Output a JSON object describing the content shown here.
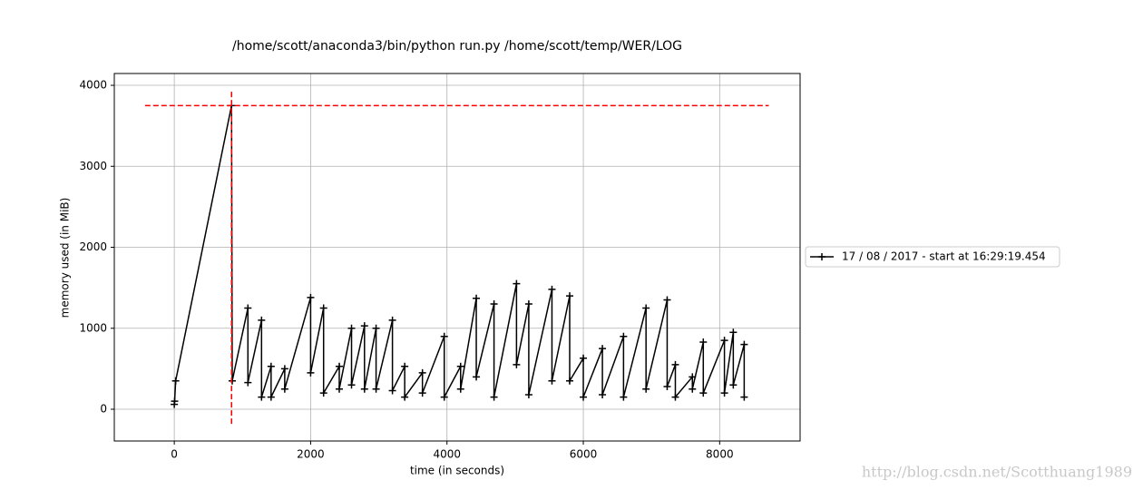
{
  "chart_data": {
    "type": "line",
    "title": "/home/scott/anaconda3/bin/python run.py /home/scott/temp/WER/LOG",
    "x_label": "time (in seconds)",
    "y_label": "memory used (in MiB)",
    "x": [
      0,
      5,
      20,
      840,
      850,
      1080,
      1080,
      1280,
      1280,
      1420,
      1420,
      1620,
      1620,
      2000,
      2000,
      2190,
      2190,
      2420,
      2420,
      2600,
      2600,
      2790,
      2790,
      2960,
      2960,
      3200,
      3200,
      3380,
      3380,
      3640,
      3640,
      3960,
      3960,
      4200,
      4200,
      4430,
      4430,
      4690,
      4690,
      5020,
      5020,
      5200,
      5200,
      5540,
      5540,
      5800,
      5800,
      6000,
      6000,
      6280,
      6280,
      6590,
      6590,
      6920,
      6920,
      7230,
      7230,
      7350,
      7350,
      7600,
      7600,
      7760,
      7760,
      8070,
      8070,
      8200,
      8200,
      8360,
      8360
    ],
    "series": [
      {
        "name": "17 / 08 / 2017 - start at 16:29:19.454",
        "color": "#000000",
        "values": [
          60,
          100,
          350,
          3750,
          350,
          1250,
          330,
          1100,
          150,
          530,
          150,
          500,
          250,
          1380,
          450,
          1250,
          200,
          530,
          250,
          1000,
          300,
          1030,
          250,
          1000,
          250,
          1100,
          230,
          530,
          150,
          450,
          200,
          900,
          150,
          530,
          250,
          1370,
          400,
          1300,
          150,
          1550,
          550,
          1300,
          180,
          1480,
          350,
          1400,
          350,
          630,
          150,
          750,
          180,
          900,
          150,
          1250,
          250,
          1350,
          280,
          550,
          150,
          400,
          250,
          830,
          200,
          850,
          200,
          950,
          300,
          800,
          150
        ]
      }
    ],
    "max_hline": {
      "y": 3750,
      "xmin": -430,
      "xmax": 8720,
      "color": "#ff0000"
    },
    "max_vline": {
      "x": 840,
      "ymin": -180,
      "ymax": 3940,
      "color": "#ff0000"
    },
    "xlim": [
      -880,
      9180
    ],
    "ylim": [
      -392,
      4146
    ],
    "xticks": [
      0,
      2000,
      4000,
      6000,
      8000
    ],
    "yticks": [
      0,
      1000,
      2000,
      3000,
      4000
    ],
    "grid": true,
    "legend": "outside-right"
  },
  "watermark": "http://blog.csdn.net/Scotthuang1989"
}
